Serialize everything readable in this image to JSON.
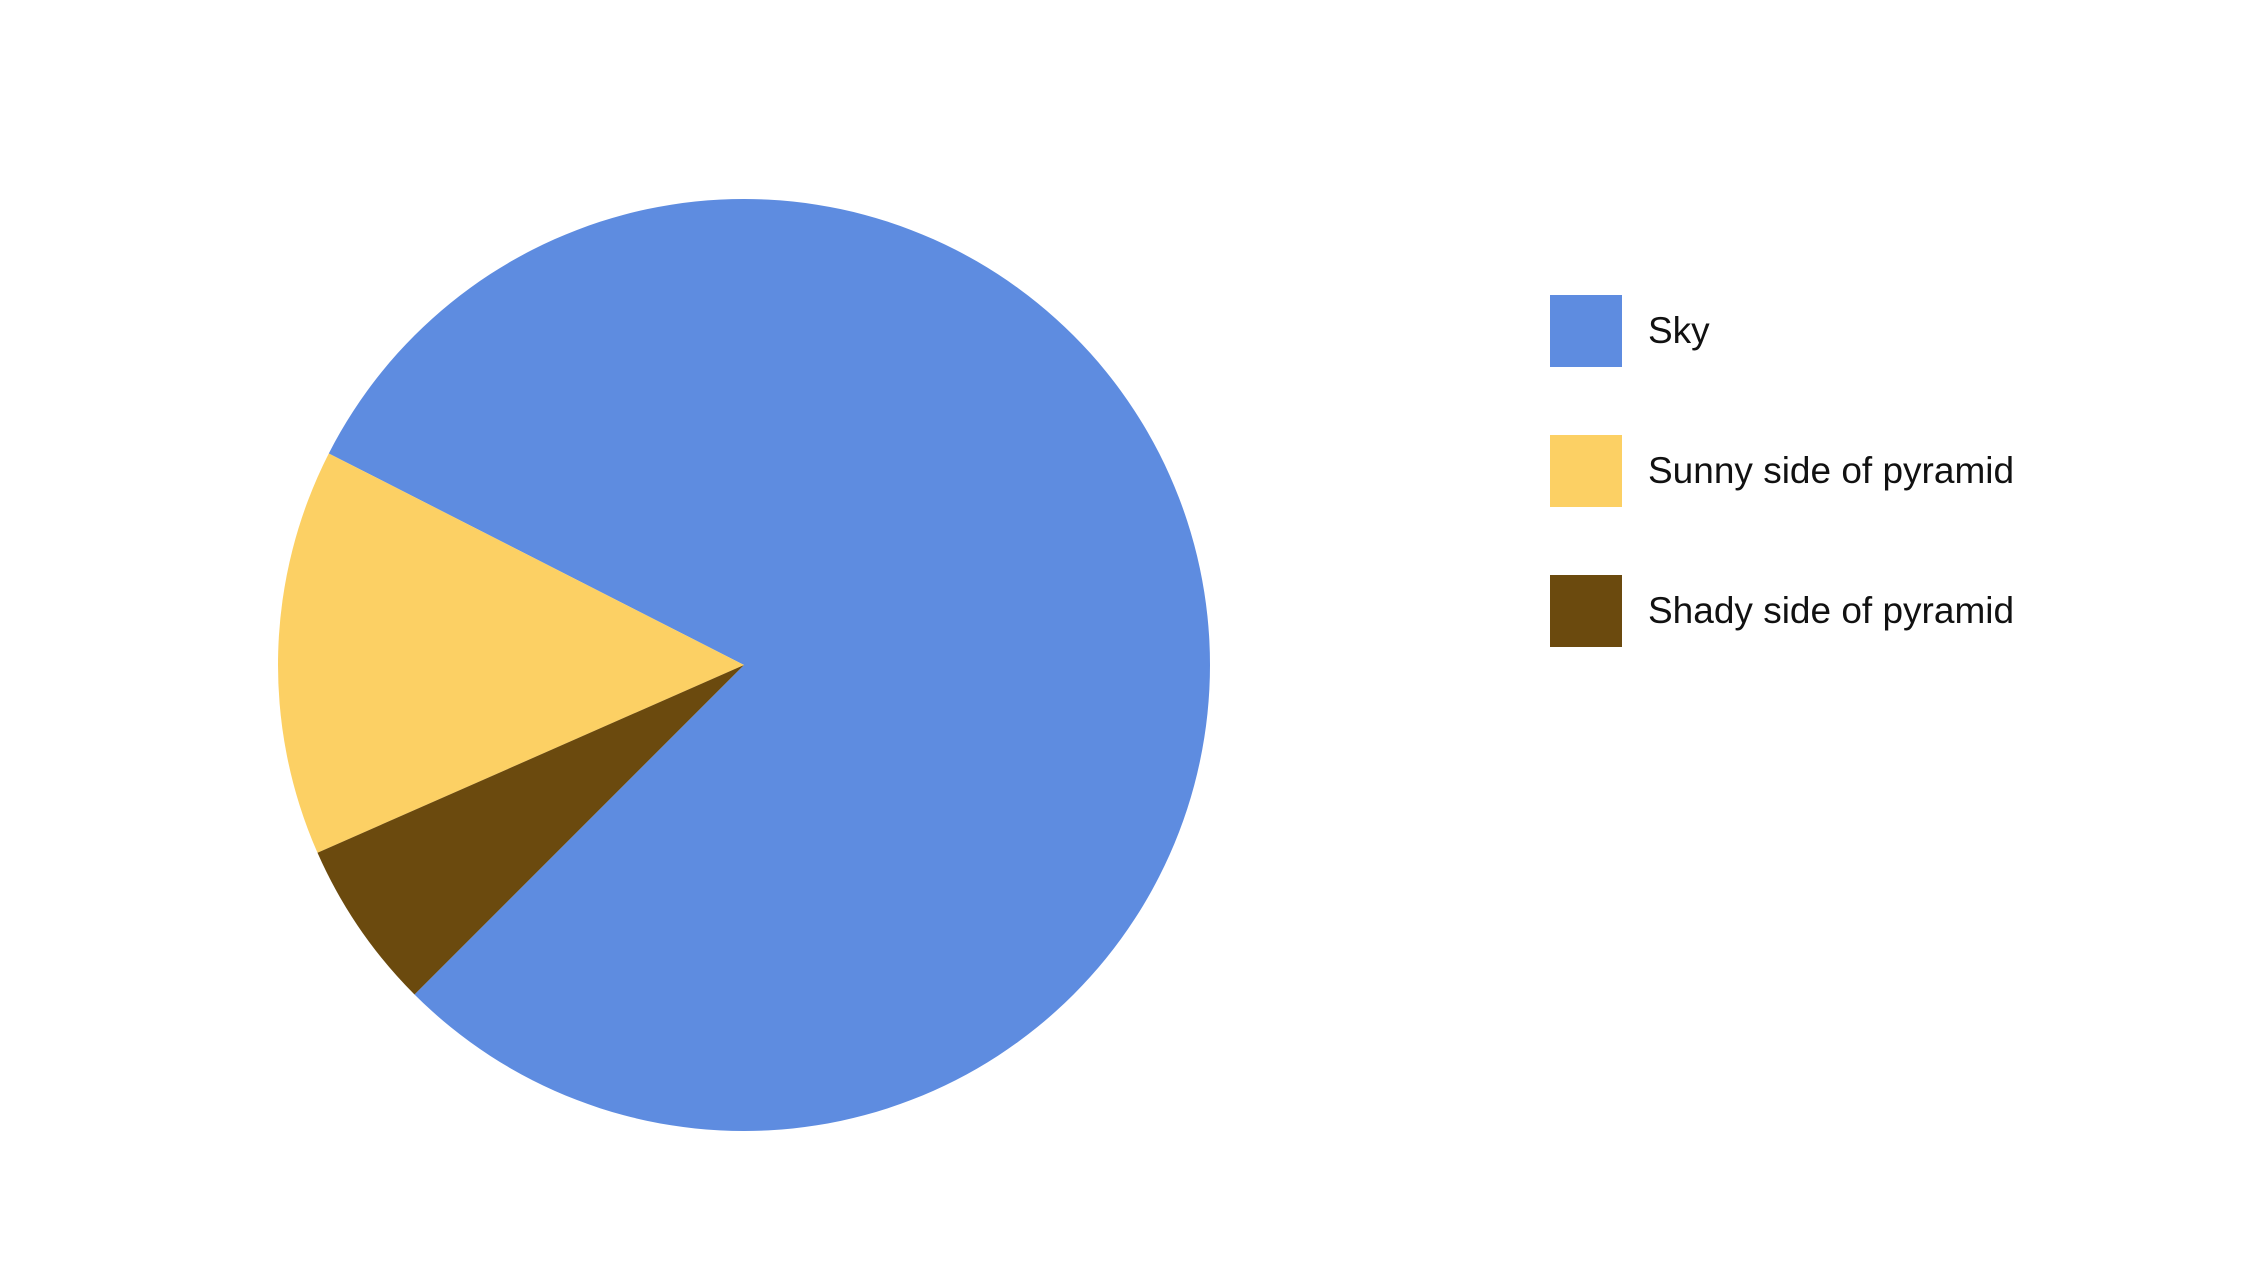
{
  "chart_data": {
    "type": "pie",
    "title": "",
    "start_angle_deg": 225,
    "direction": "counterclockwise",
    "slices": [
      {
        "label": "Sky",
        "value": 80.0,
        "color": "#5e8ce0"
      },
      {
        "label": "Sunny side of pyramid",
        "value": 14.1,
        "color": "#fcd064"
      },
      {
        "label": "Shady side of pyramid",
        "value": 5.9,
        "color": "#6b4a0e"
      }
    ],
    "legend_position": "right"
  }
}
